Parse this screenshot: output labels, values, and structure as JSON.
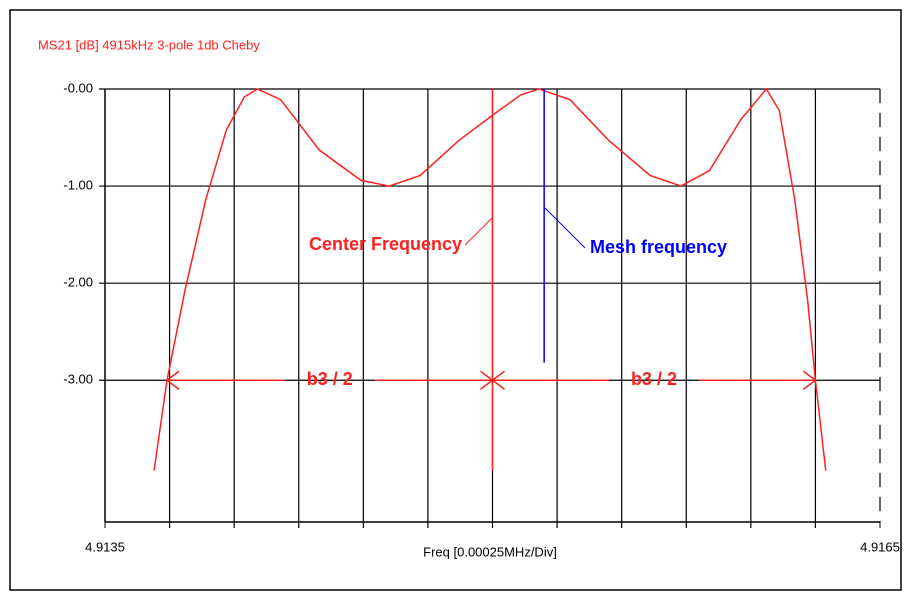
{
  "chart_data": {
    "type": "line",
    "title": "MS21 [dB]   4915kHz 3-pole 1db Cheby",
    "x_label": "Freq [0.00025MHz/Div]",
    "xlim": [
      4.9135,
      4.9165
    ],
    "xticks": [
      4.9135,
      4.9165
    ],
    "xgrid": [
      4.91375,
      4.914,
      4.91425,
      4.9145,
      4.91475,
      4.915,
      4.91525,
      4.9155,
      4.91575,
      4.916,
      4.91625
    ],
    "ylim": [
      -4.46,
      0
    ],
    "yticks": [
      {
        "value": 0,
        "label": "-0.00"
      },
      {
        "value": -1,
        "label": "-1.00"
      },
      {
        "value": -2,
        "label": "-2.00"
      },
      {
        "value": -3,
        "label": "-3.00"
      }
    ],
    "grid": true,
    "series": [
      {
        "name": "MS21",
        "color": "#ff2020",
        "x": [
          4.91369,
          4.91374,
          4.91381,
          4.91389,
          4.91397,
          4.91404,
          4.91409,
          4.91418,
          4.91433,
          4.91449,
          4.9146,
          4.91472,
          4.91487,
          4.915,
          4.91511,
          4.91518,
          4.9153,
          4.91545,
          4.91561,
          4.91573,
          4.91584,
          4.91596,
          4.91606,
          4.91611,
          4.91617,
          4.91622,
          4.91625,
          4.91629
        ],
        "values": [
          -3.93,
          -3.0,
          -2.07,
          -1.14,
          -0.42,
          -0.08,
          0.0,
          -0.11,
          -0.63,
          -0.94,
          -1.0,
          -0.89,
          -0.53,
          -0.27,
          -0.06,
          0.0,
          -0.11,
          -0.53,
          -0.89,
          -1.0,
          -0.84,
          -0.32,
          0.0,
          -0.22,
          -1.14,
          -2.18,
          -3.0,
          -3.93
        ]
      }
    ],
    "annotations": [
      {
        "text": "Center Frequency",
        "x": 4.915,
        "ylow": -3.93,
        "color": "#ff2020"
      },
      {
        "text": "Mesh frequency",
        "x": 4.9152,
        "ylow": -2.82,
        "color": "#0000ff"
      }
    ],
    "bandwidth": {
      "labels": [
        "b3 / 2",
        "b3 / 2"
      ],
      "y": -3,
      "x": [
        4.91374,
        4.915,
        4.91625
      ],
      "color": "#ff2020"
    }
  }
}
